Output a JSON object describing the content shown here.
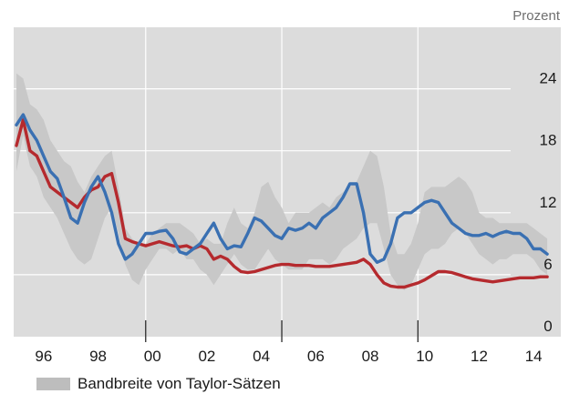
{
  "chart_data": {
    "type": "line",
    "unit_label": "Prozent",
    "y_ticks": [
      0,
      6,
      12,
      18,
      24
    ],
    "ylim": [
      0,
      27.5
    ],
    "x_range": [
      1994.9,
      2015.0
    ],
    "x_tick_labels": [
      {
        "x": 1996,
        "label": "96"
      },
      {
        "x": 1998,
        "label": "98"
      },
      {
        "x": 2000,
        "label": "00"
      },
      {
        "x": 2002,
        "label": "02"
      },
      {
        "x": 2004,
        "label": "04"
      },
      {
        "x": 2006,
        "label": "06"
      },
      {
        "x": 2008,
        "label": "08"
      },
      {
        "x": 2010,
        "label": "10"
      },
      {
        "x": 2012,
        "label": "12"
      },
      {
        "x": 2014,
        "label": "14"
      }
    ],
    "grid_years": [
      1999.75,
      2004.75,
      2009.75
    ],
    "grid_y": [
      6,
      12,
      18,
      24
    ],
    "legend": {
      "label": "Bandbreite von Taylor-Sätzen",
      "placement": "bottom-left"
    },
    "colors": {
      "band": "#c8c8c8",
      "blue": "#3a70b2",
      "red": "#b52a2e",
      "background": "#dcdcdc"
    },
    "band": {
      "x": [
        1995.0,
        1995.25,
        1995.5,
        1995.75,
        1996.0,
        1996.25,
        1996.5,
        1996.75,
        1997.0,
        1997.25,
        1997.5,
        1997.75,
        1998.0,
        1998.25,
        1998.5,
        1998.75,
        1999.0,
        1999.25,
        1999.5,
        1999.75,
        2000.0,
        2000.25,
        2000.5,
        2000.75,
        2001.0,
        2001.25,
        2001.5,
        2001.75,
        2002.0,
        2002.25,
        2002.5,
        2002.75,
        2003.0,
        2003.25,
        2003.5,
        2003.75,
        2004.0,
        2004.25,
        2004.5,
        2004.75,
        2005.0,
        2005.25,
        2005.5,
        2005.75,
        2006.0,
        2006.25,
        2006.5,
        2006.75,
        2007.0,
        2007.25,
        2007.5,
        2007.75,
        2008.0,
        2008.25,
        2008.5,
        2008.75,
        2009.0,
        2009.25,
        2009.5,
        2009.75,
        2010.0,
        2010.25,
        2010.5,
        2010.75,
        2011.0,
        2011.25,
        2011.5,
        2011.75,
        2012.0,
        2012.25,
        2012.5,
        2012.75,
        2013.0,
        2013.25,
        2013.5,
        2013.75,
        2014.0,
        2014.25,
        2014.5
      ],
      "low": [
        16.0,
        19.5,
        16.5,
        15.5,
        13.5,
        12.5,
        11.5,
        10.0,
        8.5,
        7.5,
        7.0,
        7.5,
        9.5,
        11.5,
        12.5,
        10.0,
        7.0,
        5.5,
        5.0,
        6.5,
        7.5,
        8.5,
        8.5,
        8.0,
        8.5,
        7.5,
        7.5,
        6.5,
        6.0,
        5.0,
        6.0,
        7.0,
        8.0,
        7.0,
        6.5,
        6.5,
        7.5,
        8.5,
        7.5,
        7.0,
        6.5,
        6.5,
        6.5,
        7.5,
        7.5,
        7.5,
        7.0,
        7.5,
        8.5,
        9.0,
        9.5,
        10.5,
        11.0,
        11.0,
        8.5,
        6.0,
        5.0,
        4.5,
        5.0,
        6.5,
        8.0,
        8.5,
        8.5,
        9.0,
        10.0,
        10.5,
        10.0,
        9.0,
        8.0,
        7.5,
        7.0,
        7.5,
        7.5,
        8.0,
        8.0,
        8.0,
        7.5,
        6.5,
        6.0
      ],
      "high": [
        25.5,
        25.0,
        22.5,
        22.0,
        21.0,
        19.0,
        18.0,
        17.0,
        16.5,
        15.0,
        14.0,
        15.5,
        16.5,
        17.5,
        18.0,
        14.5,
        10.5,
        9.5,
        9.0,
        9.0,
        10.0,
        10.5,
        11.0,
        11.0,
        11.0,
        10.5,
        10.0,
        9.0,
        9.5,
        9.0,
        9.0,
        11.0,
        12.5,
        11.0,
        10.5,
        12.0,
        14.5,
        15.0,
        13.5,
        12.5,
        11.0,
        12.0,
        12.0,
        12.0,
        12.5,
        13.0,
        12.5,
        13.5,
        14.0,
        14.5,
        15.0,
        16.5,
        18.0,
        17.5,
        14.5,
        10.0,
        8.0,
        8.0,
        9.0,
        11.0,
        14.0,
        14.5,
        14.5,
        14.5,
        15.0,
        15.5,
        15.0,
        14.0,
        12.0,
        11.5,
        11.5,
        11.0,
        11.0,
        11.0,
        11.0,
        11.0,
        10.5,
        10.0,
        9.5
      ]
    },
    "series": [
      {
        "color": "blue",
        "x": [
          1995.0,
          1995.25,
          1995.5,
          1995.75,
          1996.0,
          1996.25,
          1996.5,
          1996.75,
          1997.0,
          1997.25,
          1997.5,
          1997.75,
          1998.0,
          1998.25,
          1998.5,
          1998.75,
          1999.0,
          1999.25,
          1999.5,
          1999.75,
          2000.0,
          2000.25,
          2000.5,
          2000.75,
          2001.0,
          2001.25,
          2001.5,
          2001.75,
          2002.0,
          2002.25,
          2002.5,
          2002.75,
          2003.0,
          2003.25,
          2003.5,
          2003.75,
          2004.0,
          2004.25,
          2004.5,
          2004.75,
          2005.0,
          2005.25,
          2005.5,
          2005.75,
          2006.0,
          2006.25,
          2006.5,
          2006.75,
          2007.0,
          2007.25,
          2007.5,
          2007.75,
          2008.0,
          2008.25,
          2008.5,
          2008.75,
          2009.0,
          2009.25,
          2009.5,
          2009.75,
          2010.0,
          2010.25,
          2010.5,
          2010.75,
          2011.0,
          2011.25,
          2011.5,
          2011.75,
          2012.0,
          2012.25,
          2012.5,
          2012.75,
          2013.0,
          2013.25,
          2013.5,
          2013.75,
          2014.0,
          2014.25,
          2014.5
        ],
        "values": [
          20.5,
          21.5,
          20.0,
          19.0,
          17.5,
          16.0,
          15.3,
          13.5,
          11.5,
          11.0,
          13.0,
          14.5,
          15.5,
          14.0,
          12.0,
          9.0,
          7.5,
          8.0,
          9.0,
          10.0,
          10.0,
          10.2,
          10.3,
          9.5,
          8.2,
          8.0,
          8.5,
          9.0,
          10.0,
          11.0,
          9.5,
          8.5,
          8.8,
          8.7,
          10.0,
          11.5,
          11.2,
          10.5,
          9.8,
          9.5,
          10.5,
          10.3,
          10.5,
          11.0,
          10.5,
          11.5,
          12.0,
          12.5,
          13.5,
          14.8,
          14.8,
          12.0,
          8.0,
          7.2,
          7.5,
          9.0,
          11.5,
          12.0,
          12.0,
          12.5,
          13.0,
          13.2,
          13.0,
          12.0,
          11.0,
          10.5,
          10.0,
          9.8,
          9.8,
          10.0,
          9.7,
          10.0,
          10.2,
          10.0,
          10.0,
          9.5,
          8.5,
          8.5,
          8.0
        ],
        "label_note": ""
      },
      {
        "color": "red",
        "x": [
          1995.0,
          1995.25,
          1995.5,
          1995.75,
          1996.0,
          1996.25,
          1996.5,
          1996.75,
          1997.0,
          1997.25,
          1997.5,
          1997.75,
          1998.0,
          1998.25,
          1998.5,
          1998.75,
          1999.0,
          1999.25,
          1999.5,
          1999.75,
          2000.0,
          2000.25,
          2000.5,
          2000.75,
          2001.0,
          2001.25,
          2001.5,
          2001.75,
          2002.0,
          2002.25,
          2002.5,
          2002.75,
          2003.0,
          2003.25,
          2003.5,
          2003.75,
          2004.0,
          2004.25,
          2004.5,
          2004.75,
          2005.0,
          2005.25,
          2005.5,
          2005.75,
          2006.0,
          2006.25,
          2006.5,
          2006.75,
          2007.0,
          2007.25,
          2007.5,
          2007.75,
          2008.0,
          2008.25,
          2008.5,
          2008.75,
          2009.0,
          2009.25,
          2009.5,
          2009.75,
          2010.0,
          2010.25,
          2010.5,
          2010.75,
          2011.0,
          2011.25,
          2011.5,
          2011.75,
          2012.0,
          2012.25,
          2012.5,
          2012.75,
          2013.0,
          2013.25,
          2013.5,
          2013.75,
          2014.0,
          2014.25,
          2014.5
        ],
        "values": [
          18.5,
          21.0,
          18.0,
          17.5,
          16.0,
          14.5,
          14.0,
          13.5,
          13.0,
          12.5,
          13.5,
          14.2,
          14.5,
          15.5,
          15.8,
          13.0,
          9.5,
          9.2,
          9.0,
          8.8,
          9.0,
          9.2,
          9.0,
          8.8,
          8.7,
          8.8,
          8.5,
          8.8,
          8.5,
          7.5,
          7.8,
          7.5,
          6.8,
          6.3,
          6.2,
          6.3,
          6.5,
          6.7,
          6.9,
          7.0,
          7.0,
          6.9,
          6.9,
          6.9,
          6.8,
          6.8,
          6.8,
          6.9,
          7.0,
          7.1,
          7.2,
          7.5,
          7.0,
          6.0,
          5.2,
          4.9,
          4.8,
          4.8,
          5.0,
          5.2,
          5.5,
          5.9,
          6.3,
          6.3,
          6.2,
          6.0,
          5.8,
          5.6,
          5.5,
          5.4,
          5.3,
          5.4,
          5.5,
          5.6,
          5.7,
          5.7,
          5.7,
          5.8,
          5.8
        ],
        "label_note": ""
      }
    ]
  }
}
